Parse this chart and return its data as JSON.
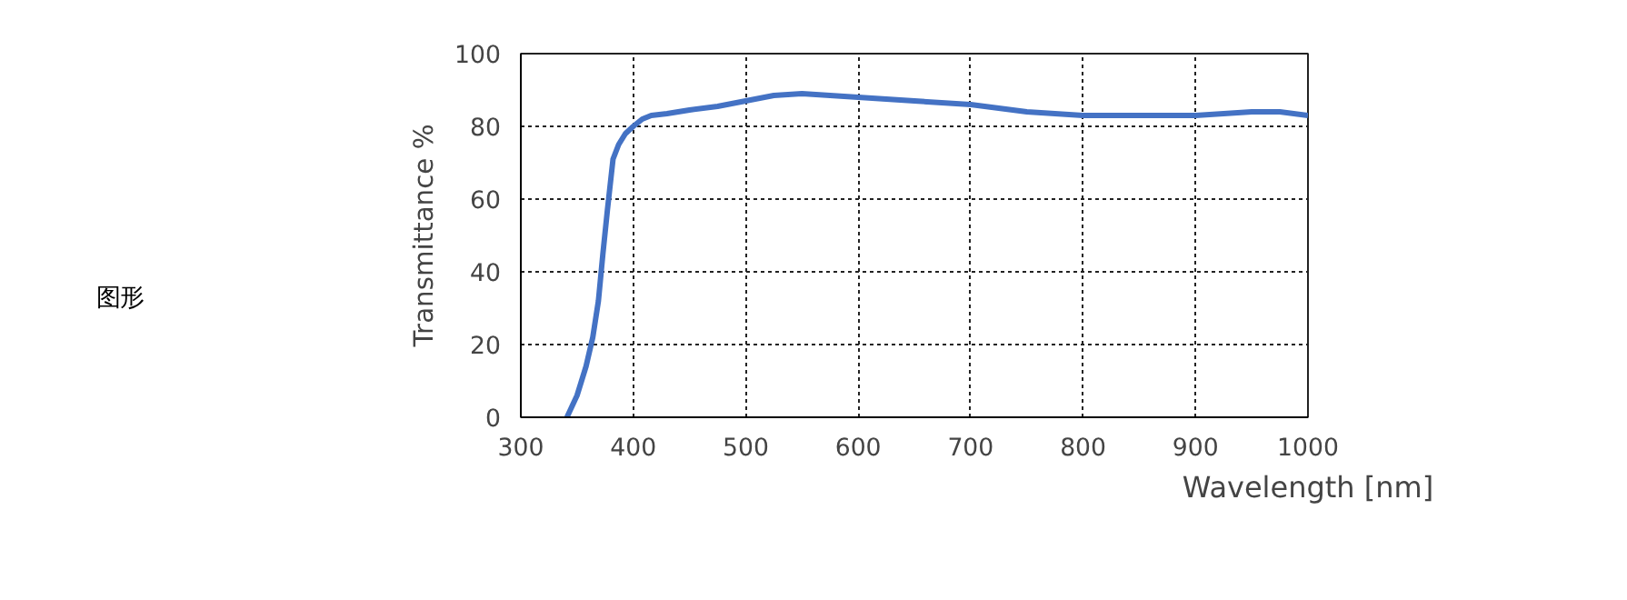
{
  "chart_data": {
    "type": "line",
    "xlabel": "Wavelength [nm]",
    "ylabel": "Transmittance %",
    "annotations": [
      "图形"
    ],
    "x": [
      341,
      350,
      358,
      364,
      369,
      373,
      377,
      382,
      387,
      393,
      400,
      408,
      416,
      430,
      450,
      475,
      500,
      525,
      550,
      575,
      600,
      650,
      700,
      750,
      800,
      850,
      900,
      925,
      950,
      975,
      1000
    ],
    "series": [
      {
        "color": "#4472c4",
        "values": [
          0,
          6,
          14,
          22,
          32,
          45,
          57,
          71,
          75,
          78,
          80,
          82,
          83,
          83.5,
          84.5,
          85.5,
          87,
          88.5,
          89,
          88.5,
          88,
          87,
          86,
          84,
          83,
          83,
          83,
          83.5,
          84,
          84,
          83
        ]
      }
    ],
    "xlim": [
      300,
      1000
    ],
    "ylim": [
      0,
      100
    ],
    "xticks": [
      300,
      400,
      500,
      600,
      700,
      800,
      900,
      1000
    ],
    "yticks": [
      0,
      20,
      40,
      60,
      80,
      100
    ],
    "grid": true,
    "line_style": "solid"
  }
}
